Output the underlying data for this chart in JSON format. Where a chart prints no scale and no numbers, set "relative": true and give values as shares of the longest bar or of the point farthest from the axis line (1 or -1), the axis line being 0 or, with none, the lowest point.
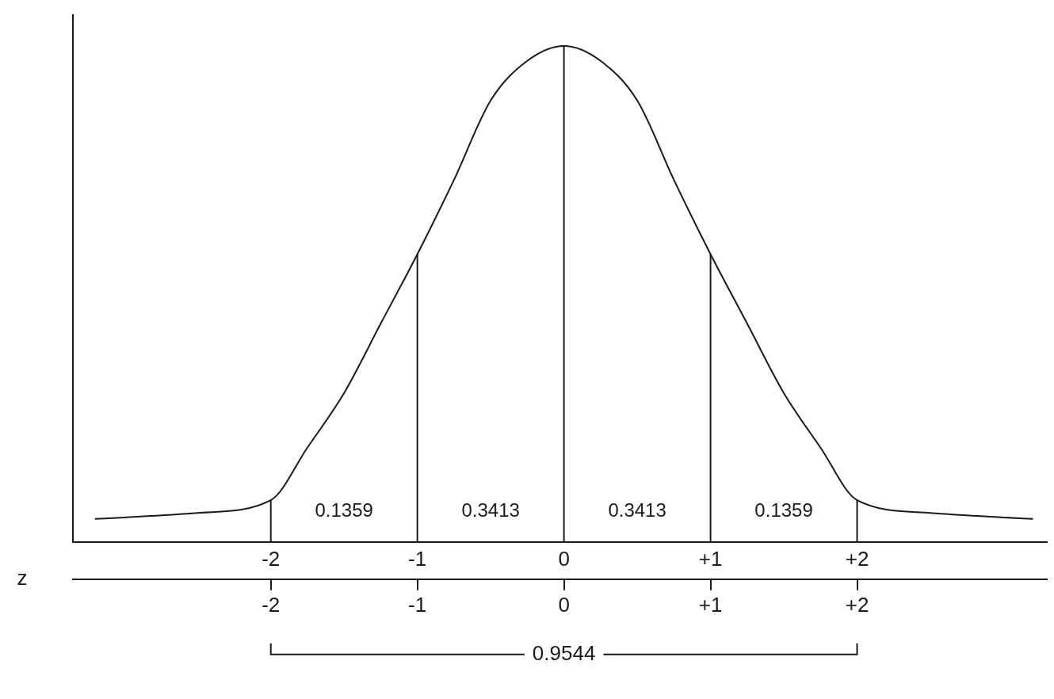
{
  "chart_data": {
    "type": "line",
    "relative": true,
    "x": [
      -3.2,
      -3,
      -2.5,
      -2,
      -1.75,
      -1.5,
      -1.25,
      -1,
      -0.75,
      -0.5,
      -0.25,
      0,
      0.25,
      0.5,
      0.75,
      1,
      1.25,
      1.5,
      1.75,
      2,
      2.5,
      3,
      3.2
    ],
    "series": [
      {
        "color": "#1a1a1a",
        "values": [
          0.046,
          0.049,
          0.058,
          0.084,
          0.19,
          0.3,
          0.44,
          0.58,
          0.73,
          0.89,
          0.97,
          1,
          0.97,
          0.89,
          0.73,
          0.58,
          0.44,
          0.3,
          0.19,
          0.084,
          0.058,
          0.049,
          0.046
        ]
      }
    ],
    "xlim": [
      -3.35,
      3.3
    ],
    "xticks": [
      {
        "value": -2,
        "label": "-2"
      },
      {
        "value": -1,
        "label": "-1"
      },
      {
        "value": 0,
        "label": "0"
      },
      {
        "value": 1,
        "label": "+1"
      },
      {
        "value": 2,
        "label": "+2"
      }
    ],
    "x2label": "z",
    "x2lim": [
      -3.35,
      3.3
    ],
    "x2ticks": [
      {
        "value": -2,
        "label": "-2"
      },
      {
        "value": -1,
        "label": "-1"
      },
      {
        "value": 0,
        "label": "0"
      },
      {
        "value": 1,
        "label": "+1"
      },
      {
        "value": 2,
        "label": "+2"
      }
    ],
    "ref_lines": [
      {
        "axis": "x",
        "value": -2,
        "label": null
      },
      {
        "axis": "x",
        "value": -1,
        "label": null
      },
      {
        "axis": "x",
        "value": 0,
        "label": null
      },
      {
        "axis": "x",
        "value": 1,
        "label": null
      },
      {
        "axis": "x",
        "value": 2,
        "label": null
      }
    ],
    "annotations": [
      "0.1359",
      "0.3413",
      "0.3413",
      "0.1359",
      "0.9544"
    ],
    "marker": "none",
    "grid": false,
    "legend": false
  }
}
